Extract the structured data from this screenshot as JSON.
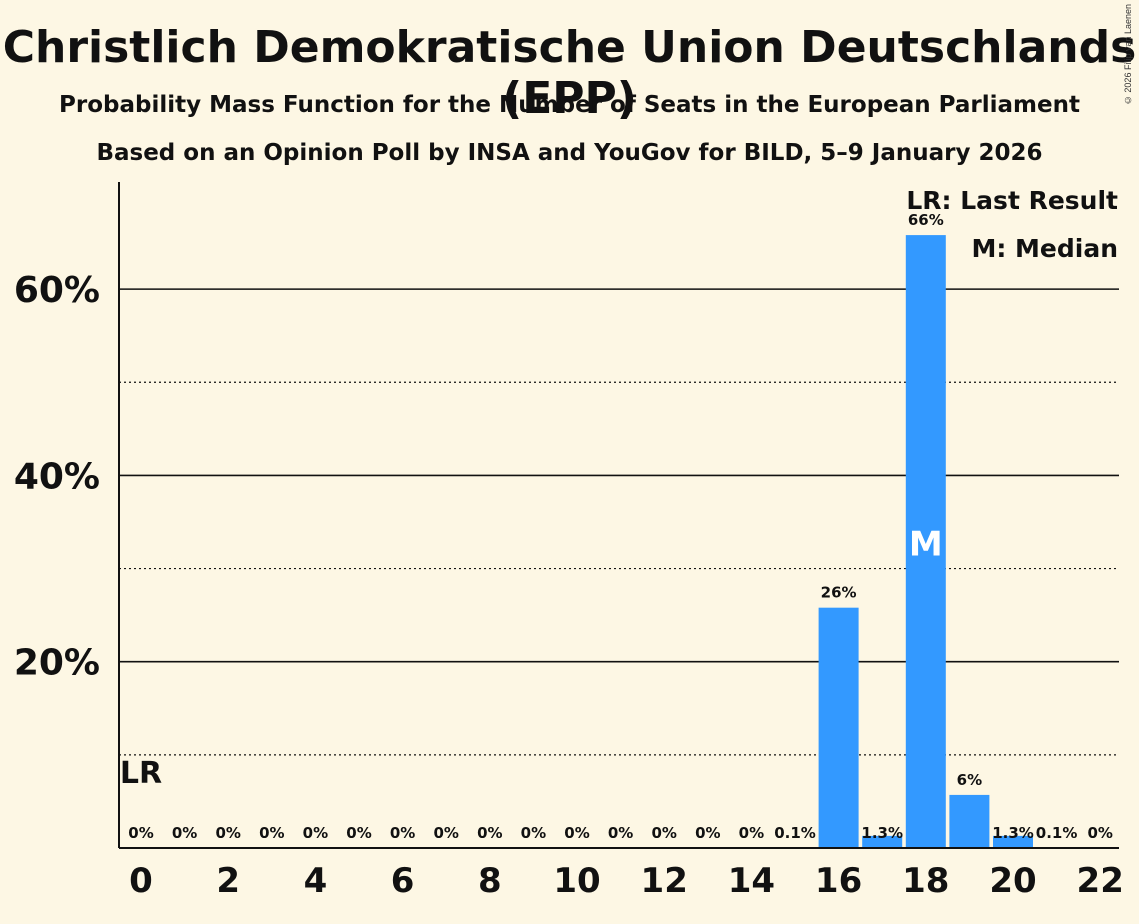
{
  "copyright": "© 2026 Filip van Laenen",
  "chart_data": {
    "type": "bar",
    "title": "Christlich Demokratische Union Deutschlands (EPP)",
    "subtitle": "Probability Mass Function for the Number of Seats in the European Parliament",
    "subtitle2": "Based on an Opinion Poll by INSA and YouGov for BILD, 5–9 January 2026",
    "x": [
      0,
      1,
      2,
      3,
      4,
      5,
      6,
      7,
      8,
      9,
      10,
      11,
      12,
      13,
      14,
      15,
      16,
      17,
      18,
      19,
      20,
      21,
      22
    ],
    "values": [
      0,
      0,
      0,
      0,
      0,
      0,
      0,
      0,
      0,
      0,
      0,
      0,
      0,
      0,
      0,
      0.1,
      25.8,
      1.3,
      65.8,
      5.7,
      1.3,
      0.1,
      0
    ],
    "labels": [
      "0%",
      "0%",
      "0%",
      "0%",
      "0%",
      "0%",
      "0%",
      "0%",
      "0%",
      "0%",
      "0%",
      "0%",
      "0%",
      "0%",
      "0%",
      "0.1%",
      "26%",
      "1.3%",
      "66%",
      "6%",
      "1.3%",
      "0.1%",
      "0%"
    ],
    "x_tick_labels": [
      "0",
      "2",
      "4",
      "6",
      "8",
      "10",
      "12",
      "14",
      "16",
      "18",
      "20",
      "22"
    ],
    "x_ticks": [
      0,
      2,
      4,
      6,
      8,
      10,
      12,
      14,
      16,
      18,
      20,
      22
    ],
    "y_ticks": [
      20,
      40,
      60
    ],
    "y_tick_labels": [
      "20%",
      "40%",
      "60%"
    ],
    "y_minor_gridlines": [
      10,
      30,
      50
    ],
    "ylim": [
      0,
      71.5
    ],
    "last_result_seat": 0,
    "last_result_label": "LR",
    "median_seat": 18,
    "median_label": "M",
    "legend": [
      "LR: Last Result",
      "M: Median"
    ],
    "colors": {
      "bar": "#3399ff",
      "background": "#fdf7e4",
      "text": "#111111"
    }
  }
}
